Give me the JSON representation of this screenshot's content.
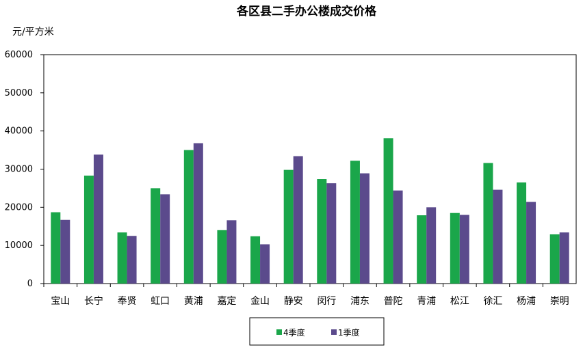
{
  "chart_data": {
    "type": "bar",
    "title": "各区县二手办公楼成交价格",
    "ylabel": "元/平方米",
    "xlabel": "",
    "ylim": [
      0,
      60000
    ],
    "yticks": [
      0,
      10000,
      20000,
      30000,
      40000,
      50000,
      60000
    ],
    "grid": false,
    "legend_position": "bottom-center",
    "categories": [
      "宝山",
      "长宁",
      "奉贤",
      "虹口",
      "黄浦",
      "嘉定",
      "金山",
      "静安",
      "闵行",
      "浦东",
      "普陀",
      "青浦",
      "松江",
      "徐汇",
      "杨浦",
      "崇明"
    ],
    "series": [
      {
        "name": "4季度",
        "color": "#1aa64a",
        "values": [
          18700,
          28300,
          13400,
          25000,
          35000,
          14000,
          12400,
          29800,
          27400,
          32200,
          38100,
          17900,
          18500,
          31600,
          26500,
          12900
        ]
      },
      {
        "name": "1季度",
        "color": "#5b4a8c",
        "values": [
          16700,
          33800,
          12500,
          23400,
          36800,
          16600,
          10300,
          33400,
          26300,
          28900,
          24400,
          20000,
          18000,
          24600,
          21400,
          13400
        ]
      }
    ]
  }
}
